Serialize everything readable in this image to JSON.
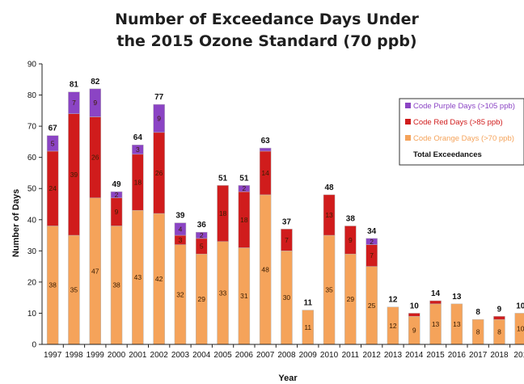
{
  "chart_data": {
    "type": "bar",
    "stacked": true,
    "title": "Number of Exceedance Days Under",
    "subtitle": "the 2015 Ozone Standard (70 ppb)",
    "xlabel": "Year",
    "ylabel": "Number of Days",
    "ylim": [
      0,
      90
    ],
    "yticks": [
      0,
      10,
      20,
      30,
      40,
      50,
      60,
      70,
      80,
      90
    ],
    "grid": false,
    "legend_position": "right",
    "categories": [
      "1997",
      "1998",
      "1999",
      "2000",
      "2001",
      "2002",
      "2003",
      "2004",
      "2005",
      "2006",
      "2007",
      "2008",
      "2009",
      "2010",
      "2011",
      "2012",
      "2013",
      "2014",
      "2015",
      "2016",
      "2017",
      "2018",
      "201"
    ],
    "series": [
      {
        "name": "Code Orange Days (>70 ppb)",
        "color": "#f5a35a",
        "values": [
          38,
          35,
          47,
          38,
          43,
          42,
          32,
          29,
          33,
          31,
          48,
          30,
          11,
          35,
          29,
          25,
          12,
          9,
          13,
          13,
          8,
          8,
          10
        ],
        "labels": [
          "38",
          "35",
          "47",
          "38",
          "43",
          "42",
          "32",
          "29",
          "33",
          "31",
          "48",
          "30",
          "11",
          "35",
          "29",
          "25",
          "12",
          "9",
          "13",
          "13",
          "8",
          "8",
          "10"
        ]
      },
      {
        "name": "Code Red Days (>85 ppb)",
        "color": "#d01c1c",
        "values": [
          24,
          39,
          26,
          9,
          18,
          26,
          3,
          5,
          18,
          18,
          14,
          7,
          0,
          13,
          9,
          7,
          0,
          1,
          1,
          0,
          0,
          1,
          0
        ],
        "labels": [
          "24",
          "39",
          "26",
          "9",
          "18",
          "26",
          "3",
          "5",
          "18",
          "18",
          "14",
          "7",
          "",
          "13",
          "9",
          "7",
          "",
          "",
          "",
          "",
          "",
          "",
          ""
        ]
      },
      {
        "name": "Code Purple Days (>105 ppb)",
        "color": "#8b44c4",
        "values": [
          5,
          7,
          9,
          2,
          3,
          9,
          4,
          2,
          0,
          2,
          1,
          0,
          0,
          0,
          0,
          2,
          0,
          0,
          0,
          0,
          0,
          0,
          0
        ],
        "labels": [
          "5",
          "7",
          "9",
          "2",
          "3",
          "9",
          "4",
          "2",
          "",
          "2",
          "",
          "",
          "",
          "",
          "",
          "2",
          "",
          "",
          "",
          "",
          "",
          "",
          ""
        ]
      }
    ],
    "totals": [
      67,
      81,
      82,
      49,
      64,
      77,
      39,
      36,
      51,
      51,
      63,
      37,
      11,
      48,
      38,
      34,
      12,
      10,
      14,
      13,
      8,
      9,
      10
    ],
    "total_labels": [
      "67",
      "81",
      "82",
      "49",
      "64",
      "77",
      "39",
      "36",
      "51",
      "51",
      "63",
      "37",
      "11",
      "48",
      "38",
      "34",
      "12",
      "10",
      "14",
      "13",
      "8",
      "9",
      "10"
    ],
    "legend_total_label": "Total Exceedances"
  }
}
